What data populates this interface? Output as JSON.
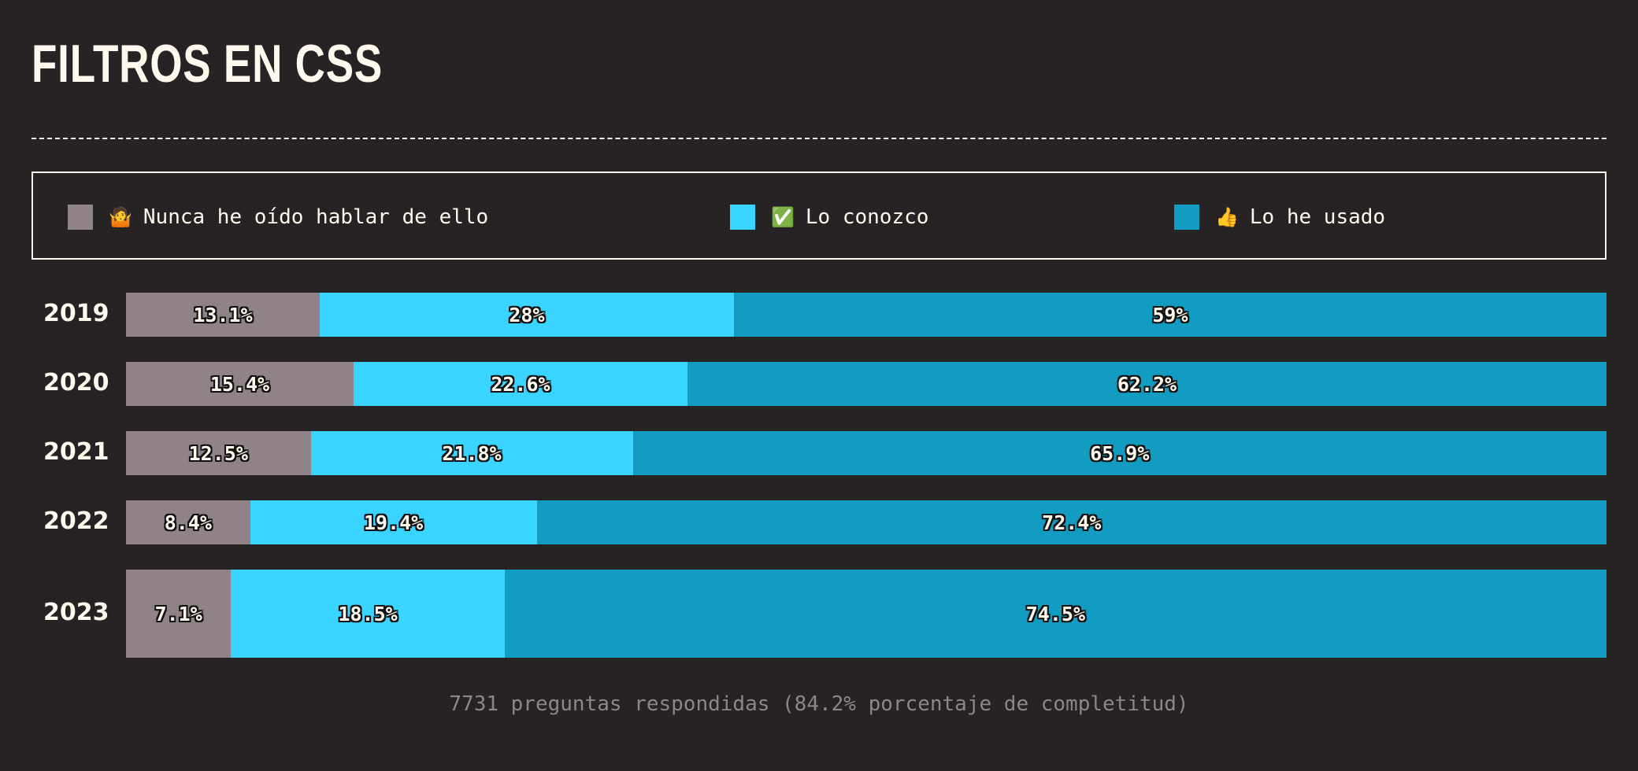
{
  "title": "FILTROS EN CSS",
  "legend": [
    {
      "icon": "🤷",
      "label": "Nunca he oído hablar de ello",
      "color": "#8f8387"
    },
    {
      "icon": "✅",
      "label": "Lo conozco",
      "color": "#39d4ff"
    },
    {
      "icon": "👍",
      "label": "Lo he usado",
      "color": "#139cc1"
    }
  ],
  "chart_data": {
    "type": "bar",
    "orientation": "horizontal",
    "stacked": true,
    "categories": [
      "2019",
      "2020",
      "2021",
      "2022",
      "2023"
    ],
    "series": [
      {
        "name": "Nunca he oído hablar de ello",
        "values": [
          13.1,
          15.4,
          12.5,
          8.4,
          7.1
        ],
        "labels": [
          "13.1%",
          "15.4%",
          "12.5%",
          "8.4%",
          "7.1%"
        ],
        "color": "#8f8387"
      },
      {
        "name": "Lo conozco",
        "values": [
          28,
          22.6,
          21.8,
          19.4,
          18.5
        ],
        "labels": [
          "28%",
          "22.6%",
          "21.8%",
          "19.4%",
          "18.5%"
        ],
        "color": "#39d4ff"
      },
      {
        "name": "Lo he usado",
        "values": [
          59,
          62.2,
          65.9,
          72.4,
          74.5
        ],
        "labels": [
          "59%",
          "62.2%",
          "65.9%",
          "72.4%",
          "74.5%"
        ],
        "color": "#139cc1"
      }
    ],
    "legend_position": "top"
  },
  "footer": "7731 preguntas respondidas (84.2% porcentaje de completitud)"
}
